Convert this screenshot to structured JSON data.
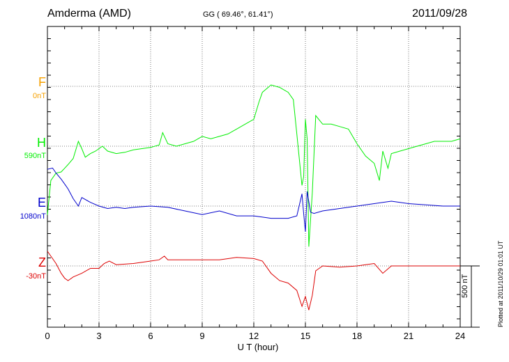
{
  "header": {
    "station": "Amderma (AMD)",
    "coords": "GG ( 69.46°,  61.41°)",
    "date": "2011/09/28"
  },
  "components": [
    {
      "name": "F",
      "base": "0nT",
      "color": "#f5a000"
    },
    {
      "name": "H",
      "base": "590nT",
      "color": "#00ee00"
    },
    {
      "name": "E",
      "base": "1080nT",
      "color": "#0000cc"
    },
    {
      "name": "Z",
      "base": "-30nT",
      "color": "#dd0000"
    }
  ],
  "xaxis": {
    "label": "U T (hour)",
    "ticks": [
      "0",
      "3",
      "6",
      "9",
      "12",
      "15",
      "18",
      "21",
      "24"
    ]
  },
  "scale": {
    "label": "500 nT",
    "value_nT": 500
  },
  "footer": {
    "plotted": "Plotted at 2011/10/29 01:01  UT"
  },
  "chart_data": {
    "type": "line",
    "title": "Amderma (AMD)",
    "xlabel": "U T (hour)",
    "ylabel": "",
    "xlim": [
      0,
      24
    ],
    "grid": true,
    "series": [
      {
        "name": "H",
        "color": "#00ee00",
        "base_nT": 590,
        "x": [
          0,
          0.2,
          0.5,
          0.8,
          1,
          1.2,
          1.5,
          1.8,
          2,
          2.2,
          2.5,
          2.8,
          3,
          3.2,
          3.5,
          4,
          4.5,
          5,
          5.5,
          6,
          6.5,
          6.7,
          7,
          7.5,
          8,
          8.5,
          9,
          9.5,
          10,
          10.5,
          11,
          11.5,
          12,
          12.3,
          12.5,
          13,
          13.5,
          14,
          14.3,
          14.5,
          14.7,
          14.8,
          14.9,
          15,
          15.1,
          15.2,
          15.4,
          15.6,
          16,
          16.5,
          17,
          17.5,
          18,
          18.5,
          19,
          19.3,
          19.5,
          19.8,
          20,
          20.5,
          21,
          21.5,
          22,
          22.5,
          23,
          23.5,
          24
        ],
        "y": [
          -560,
          -280,
          -220,
          -210,
          -180,
          -150,
          -100,
          40,
          -20,
          -90,
          -60,
          -40,
          -20,
          0,
          -40,
          -60,
          -50,
          -30,
          -20,
          -10,
          10,
          110,
          20,
          0,
          20,
          40,
          80,
          60,
          80,
          100,
          140,
          180,
          220,
          360,
          440,
          500,
          480,
          440,
          380,
          100,
          -180,
          -320,
          -250,
          220,
          60,
          -820,
          -380,
          250,
          180,
          180,
          160,
          140,
          20,
          -80,
          -140,
          -280,
          -40,
          -180,
          -60,
          -40,
          -20,
          0,
          20,
          40,
          40,
          40,
          60
        ]
      },
      {
        "name": "E",
        "color": "#0000cc",
        "base_nT": 1080,
        "x": [
          0,
          0.3,
          0.5,
          0.8,
          1,
          1.2,
          1.5,
          1.8,
          2,
          2.5,
          3,
          3.5,
          4,
          4.5,
          5,
          6,
          7,
          8,
          9,
          10,
          11,
          12,
          13,
          14,
          14.5,
          14.8,
          14.9,
          15,
          15.1,
          15.3,
          15.5,
          16,
          16.5,
          17,
          18,
          19,
          20,
          21,
          22,
          23,
          24
        ],
        "y": [
          300,
          310,
          270,
          220,
          180,
          140,
          60,
          0,
          70,
          30,
          0,
          -20,
          -10,
          -20,
          -10,
          0,
          -10,
          -40,
          -70,
          -40,
          -80,
          -80,
          -100,
          -100,
          -80,
          100,
          -60,
          -210,
          120,
          -50,
          -60,
          -40,
          -30,
          -20,
          0,
          20,
          40,
          20,
          10,
          0,
          0
        ]
      },
      {
        "name": "Z",
        "color": "#dd0000",
        "base_nT": -30,
        "x": [
          0,
          0.2,
          0.5,
          0.8,
          1,
          1.2,
          1.5,
          2,
          2.5,
          3,
          3.3,
          3.6,
          4,
          5,
          6,
          6.5,
          6.8,
          7,
          8,
          9,
          10,
          11,
          12,
          12.5,
          13,
          13.5,
          14,
          14.5,
          14.8,
          15,
          15.2,
          15.4,
          15.6,
          16,
          17,
          18,
          19,
          19.5,
          20,
          21,
          22,
          23,
          24
        ],
        "y": [
          120,
          80,
          20,
          -60,
          -100,
          -120,
          -90,
          -60,
          -20,
          -20,
          20,
          40,
          10,
          20,
          40,
          50,
          80,
          50,
          50,
          50,
          50,
          70,
          60,
          40,
          -60,
          -120,
          -140,
          -200,
          -330,
          -250,
          -360,
          -240,
          -40,
          0,
          -10,
          0,
          20,
          -60,
          0,
          0,
          0,
          0,
          0
        ]
      }
    ]
  }
}
